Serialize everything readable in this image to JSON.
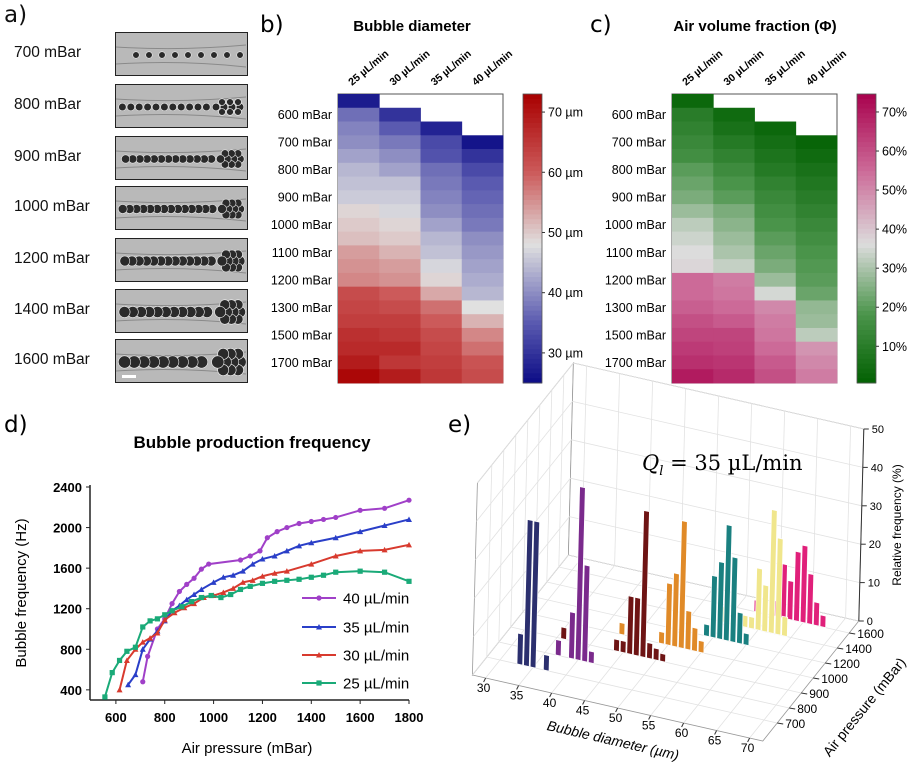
{
  "panel_labels": {
    "a": "a)",
    "b": "b)",
    "c": "c)",
    "d": "d)",
    "e": "e)"
  },
  "panel_a": {
    "rows": [
      "700 mBar",
      "800 mBar",
      "900 mBar",
      "1000 mBar",
      "1200 mBar",
      "1400 mBar",
      "1600 mBar"
    ],
    "scale_bar_color": "#ffffff"
  },
  "chart_data": [
    {
      "type": "heatmap",
      "title": "Bubble diameter",
      "columns": [
        "25 µL/min",
        "30 µL/min",
        "35 µL/min",
        "40 µL/min"
      ],
      "row_labels": [
        "",
        "600 mBar",
        "",
        "700 mBar",
        "",
        "800 mBar",
        "",
        "900 mBar",
        "",
        "1000 mBar",
        "",
        "1100 mBar",
        "",
        "1200 mBar",
        "",
        "1300 mBar",
        "",
        "1500 mBar",
        "",
        "1700 mBar",
        ""
      ],
      "values": [
        [
          27,
          null,
          null,
          null
        ],
        [
          37,
          30,
          null,
          null
        ],
        [
          39,
          35,
          28,
          null
        ],
        [
          40,
          38,
          33,
          26
        ],
        [
          42,
          40,
          34,
          30
        ],
        [
          44,
          42,
          37,
          33
        ],
        [
          45,
          45,
          38,
          35
        ],
        [
          46,
          46,
          39,
          36
        ],
        [
          49,
          47,
          40,
          37
        ],
        [
          50,
          49,
          42,
          38
        ],
        [
          51,
          50,
          44,
          40
        ],
        [
          54,
          52,
          45,
          41
        ],
        [
          55,
          54,
          47,
          42
        ],
        [
          56,
          55,
          49,
          43
        ],
        [
          62,
          60,
          53,
          44
        ],
        [
          63,
          62,
          58,
          48
        ],
        [
          64,
          64,
          60,
          52
        ],
        [
          66,
          65,
          62,
          56
        ],
        [
          67,
          67,
          63,
          58
        ],
        [
          69,
          65,
          64,
          61
        ],
        [
          72,
          69,
          65,
          62
        ]
      ],
      "colorbar": {
        "range": [
          25,
          73
        ],
        "ticks": [
          70,
          60,
          50,
          40,
          30
        ],
        "tick_labels": [
          "70 µm",
          "60 µm",
          "50 µm",
          "40 µm",
          "30 µm"
        ]
      },
      "colorscale": [
        [
          25,
          "#0c0c86"
        ],
        [
          35,
          "#5a5ab0"
        ],
        [
          48,
          "#e0e0e0"
        ],
        [
          60,
          "#cc5a5a"
        ],
        [
          73,
          "#a80000"
        ]
      ]
    },
    {
      "type": "heatmap",
      "title": "Air volume fraction (Φ)",
      "columns": [
        "25 µL/min",
        "30 µL/min",
        "35 µL/min",
        "40 µL/min"
      ],
      "row_labels": [
        "",
        "600 mBar",
        "",
        "700 mBar",
        "",
        "800 mBar",
        "",
        "900 mBar",
        "",
        "1000 mBar",
        "",
        "1100 mBar",
        "",
        "1200 mBar",
        "",
        "1300 mBar",
        "",
        "1500 mBar",
        "",
        "1700 mBar",
        ""
      ],
      "values": [
        [
          3,
          null,
          null,
          null
        ],
        [
          10,
          4,
          null,
          null
        ],
        [
          12,
          6,
          3,
          null
        ],
        [
          14,
          9,
          5,
          2
        ],
        [
          16,
          12,
          7,
          4
        ],
        [
          20,
          15,
          9,
          6
        ],
        [
          22,
          18,
          12,
          8
        ],
        [
          24,
          20,
          14,
          10
        ],
        [
          28,
          24,
          16,
          12
        ],
        [
          32,
          26,
          18,
          14
        ],
        [
          34,
          28,
          20,
          16
        ],
        [
          36,
          30,
          22,
          18
        ],
        [
          37,
          33,
          24,
          19
        ],
        [
          55,
          52,
          28,
          20
        ],
        [
          55,
          53,
          35,
          22
        ],
        [
          57,
          55,
          50,
          27
        ],
        [
          60,
          58,
          52,
          28
        ],
        [
          62,
          62,
          53,
          32
        ],
        [
          64,
          63,
          55,
          48
        ],
        [
          66,
          65,
          58,
          50
        ],
        [
          70,
          67,
          60,
          52
        ]
      ],
      "colorbar": {
        "range": [
          0.6,
          74.6
        ],
        "ticks": [
          70,
          60,
          50,
          40,
          30,
          20,
          10
        ],
        "tick_labels": [
          "70%",
          "60%",
          "50%",
          "40%",
          "30%",
          "20%",
          "10%"
        ]
      },
      "colorscale": [
        [
          0,
          "#005f00"
        ],
        [
          18,
          "#4a944a"
        ],
        [
          36,
          "#dcdcdc"
        ],
        [
          55,
          "#cc6a98"
        ],
        [
          75,
          "#a8004c"
        ]
      ]
    },
    {
      "type": "line",
      "title": "Bubble production frequency",
      "xlabel": "Air pressure (mBar)",
      "ylabel": "Bubble frequency (Hz)",
      "xlim": [
        494,
        1800
      ],
      "ylim": [
        300,
        2400
      ],
      "xticks": [
        600,
        800,
        1000,
        1200,
        1400,
        1600,
        1800
      ],
      "yticks": [
        400,
        800,
        1200,
        1600,
        2000,
        2400
      ],
      "legend_position": "bottom-right",
      "series": [
        {
          "name": "40 µL/min",
          "color": "#a040c8",
          "marker": "circle",
          "x": [
            710,
            730,
            770,
            800,
            830,
            860,
            890,
            920,
            950,
            980,
            1110,
            1150,
            1190,
            1220,
            1260,
            1300,
            1350,
            1400,
            1450,
            1500,
            1600,
            1700,
            1800
          ],
          "y": [
            480,
            730,
            1000,
            1100,
            1250,
            1370,
            1440,
            1500,
            1590,
            1640,
            1680,
            1720,
            1770,
            1900,
            1960,
            2000,
            2040,
            2060,
            2080,
            2100,
            2170,
            2190,
            2270
          ]
        },
        {
          "name": "35 µL/min",
          "color": "#2a3fc8",
          "marker": "triangle",
          "x": [
            650,
            680,
            710,
            740,
            770,
            800,
            830,
            860,
            890,
            920,
            950,
            1000,
            1040,
            1080,
            1120,
            1160,
            1200,
            1250,
            1300,
            1350,
            1400,
            1500,
            1600,
            1700,
            1800
          ],
          "y": [
            450,
            550,
            800,
            900,
            980,
            1080,
            1180,
            1230,
            1290,
            1340,
            1390,
            1460,
            1510,
            1530,
            1570,
            1640,
            1690,
            1720,
            1770,
            1820,
            1850,
            1900,
            1960,
            2020,
            2080
          ]
        },
        {
          "name": "30 µL/min",
          "color": "#d83a2e",
          "marker": "triangle",
          "x": [
            615,
            645,
            680,
            710,
            740,
            770,
            800,
            840,
            880,
            920,
            960,
            1000,
            1040,
            1080,
            1120,
            1160,
            1200,
            1250,
            1300,
            1400,
            1500,
            1600,
            1700,
            1800
          ],
          "y": [
            400,
            690,
            800,
            870,
            910,
            960,
            1090,
            1160,
            1210,
            1250,
            1310,
            1330,
            1360,
            1400,
            1460,
            1480,
            1520,
            1550,
            1570,
            1640,
            1720,
            1770,
            1780,
            1830
          ]
        },
        {
          "name": "25 µL/min",
          "color": "#1aaa78",
          "marker": "square",
          "x": [
            555,
            585,
            615,
            645,
            680,
            710,
            740,
            770,
            800,
            830,
            870,
            910,
            950,
            990,
            1030,
            1070,
            1110,
            1150,
            1200,
            1250,
            1300,
            1350,
            1400,
            1450,
            1500,
            1600,
            1700,
            1800
          ],
          "y": [
            330,
            570,
            690,
            780,
            820,
            1020,
            1080,
            1100,
            1140,
            1180,
            1220,
            1270,
            1310,
            1330,
            1310,
            1340,
            1390,
            1420,
            1450,
            1470,
            1480,
            1490,
            1510,
            1530,
            1560,
            1570,
            1560,
            1470
          ]
        }
      ]
    },
    {
      "type": "bar3d",
      "annotation": {
        "symbol": "Q",
        "subscript": "l",
        "text": " = 35 µL/min"
      },
      "xlabel": "Bubble diameter (µm)",
      "ylabel": "Air pressure (mBar)",
      "zlabel": "Relative frequency (%)",
      "xlim": [
        28,
        72
      ],
      "xticks": [
        30,
        35,
        40,
        45,
        50,
        55,
        60,
        65,
        70
      ],
      "zlim": [
        0,
        50
      ],
      "zticks": [
        0,
        10,
        20,
        30,
        40,
        50
      ],
      "categories": [
        "700",
        "800",
        "900",
        "1000",
        "1200",
        "1400",
        "1600"
      ],
      "series": [
        {
          "pressure": "700",
          "color": "#2b2f6e",
          "bars": [
            [
              33,
              8
            ],
            [
              34,
              38
            ],
            [
              35,
              38
            ],
            [
              37,
              4
            ]
          ]
        },
        {
          "pressure": "800",
          "color": "#7a2a8c",
          "bars": [
            [
              37,
              4
            ],
            [
              39,
              12
            ],
            [
              40,
              45
            ],
            [
              41,
              25
            ],
            [
              42,
              3
            ]
          ]
        },
        {
          "pressure": "900",
          "color": "#6e1414",
          "bars": [
            [
              36,
              3
            ],
            [
              44,
              3
            ],
            [
              45,
              3
            ],
            [
              46,
              15
            ],
            [
              47,
              15
            ],
            [
              48,
              38
            ],
            [
              49,
              4
            ],
            [
              50,
              3
            ],
            [
              51,
              2
            ]
          ]
        },
        {
          "pressure": "1000",
          "color": "#e08a28",
          "bars": [
            [
              43,
              3
            ],
            [
              49,
              3
            ],
            [
              50,
              16
            ],
            [
              51,
              19
            ],
            [
              52,
              33
            ],
            [
              53,
              10
            ],
            [
              54,
              6
            ],
            [
              55,
              3
            ]
          ]
        },
        {
          "pressure": "1200",
          "color": "#1a8080",
          "bars": [
            [
              54,
              3
            ],
            [
              55,
              16
            ],
            [
              56,
              20
            ],
            [
              57,
              30
            ],
            [
              58,
              22
            ],
            [
              59,
              8
            ],
            [
              60,
              3
            ]
          ]
        },
        {
          "pressure": "1400",
          "color": "#f0e68c",
          "bars": [
            [
              55,
              4
            ],
            [
              58,
              3
            ],
            [
              59,
              3
            ],
            [
              60,
              16
            ],
            [
              61,
              12
            ],
            [
              62,
              32
            ],
            [
              63,
              25
            ],
            [
              64,
              5
            ]
          ]
        },
        {
          "pressure": "1600",
          "color": "#e0207a",
          "bars": [
            [
              58,
              3
            ],
            [
              61,
              4
            ],
            [
              62,
              14
            ],
            [
              63,
              10
            ],
            [
              64,
              18
            ],
            [
              65,
              20
            ],
            [
              66,
              13
            ],
            [
              67,
              6
            ],
            [
              68,
              3
            ]
          ]
        }
      ]
    }
  ]
}
